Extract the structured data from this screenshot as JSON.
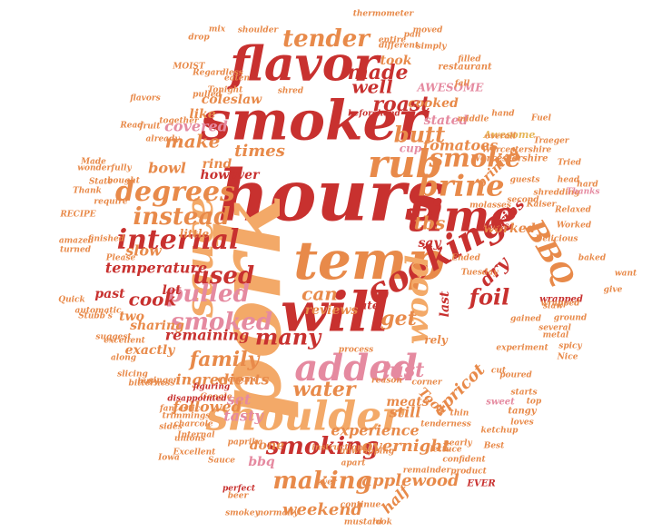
{
  "palette": {
    "red": "#c8312f",
    "darkred": "#b22a2a",
    "orange": "#e88a4a",
    "peach": "#f3a968",
    "pink": "#e58aa0",
    "gold": "#e6b656",
    "rose": "#d9606d"
  },
  "words": [
    {
      "text": "hours",
      "color": "red"
    },
    {
      "text": "smoker",
      "color": "red"
    },
    {
      "text": "pork",
      "color": "peach"
    },
    {
      "text": "flavor",
      "color": "red"
    },
    {
      "text": "temp",
      "color": "orange"
    },
    {
      "text": "will",
      "color": "red"
    },
    {
      "text": "time",
      "color": "red"
    },
    {
      "text": "shoulder",
      "color": "peach"
    },
    {
      "text": "sauce",
      "color": "peach"
    },
    {
      "text": "added",
      "color": "pink"
    },
    {
      "text": "cooking",
      "color": "red"
    },
    {
      "text": "rub",
      "color": "orange"
    },
    {
      "text": "degrees",
      "color": "orange"
    },
    {
      "text": "internal",
      "color": "red"
    },
    {
      "text": "wood",
      "color": "peach"
    },
    {
      "text": "brine",
      "color": "orange"
    },
    {
      "text": "smoked",
      "color": "pink"
    },
    {
      "text": "tender",
      "color": "orange"
    },
    {
      "text": "pulled",
      "color": "pink"
    },
    {
      "text": "smoke",
      "color": "orange"
    },
    {
      "text": "BBQ",
      "color": "orange"
    },
    {
      "text": "smoking",
      "color": "red"
    },
    {
      "text": "used",
      "color": "red"
    },
    {
      "text": "instead",
      "color": "orange"
    },
    {
      "text": "made",
      "color": "red"
    },
    {
      "text": "roast",
      "color": "red"
    },
    {
      "text": "butt",
      "color": "orange"
    },
    {
      "text": "making",
      "color": "orange"
    },
    {
      "text": "many",
      "color": "red"
    },
    {
      "text": "foil",
      "color": "red"
    },
    {
      "text": "water",
      "color": "orange"
    },
    {
      "text": "get",
      "color": "orange"
    },
    {
      "text": "just",
      "color": "pink"
    },
    {
      "text": "can",
      "color": "orange"
    },
    {
      "text": "cook",
      "color": "red"
    },
    {
      "text": "family",
      "color": "orange"
    },
    {
      "text": "well",
      "color": "red"
    },
    {
      "text": "make",
      "color": "orange"
    },
    {
      "text": "covered",
      "color": "pink"
    },
    {
      "text": "times",
      "color": "orange"
    },
    {
      "text": "ingredients",
      "color": "orange"
    },
    {
      "text": "overnight",
      "color": "orange"
    },
    {
      "text": "weekend",
      "color": "orange"
    },
    {
      "text": "applewood",
      "color": "orange"
    },
    {
      "text": "tbs",
      "color": "orange"
    },
    {
      "text": "dry",
      "color": "red"
    },
    {
      "text": "apricot",
      "color": "orange"
    },
    {
      "text": "still",
      "color": "orange"
    },
    {
      "text": "tasty",
      "color": "pink"
    },
    {
      "text": "meats",
      "color": "orange"
    },
    {
      "text": "experience",
      "color": "orange"
    },
    {
      "text": "temperature",
      "color": "red"
    },
    {
      "text": "bowl",
      "color": "orange"
    },
    {
      "text": "coleslaw",
      "color": "orange"
    },
    {
      "text": "tomatoes",
      "color": "orange"
    },
    {
      "text": "cooked",
      "color": "orange"
    },
    {
      "text": "ribs",
      "color": "red"
    },
    {
      "text": "brining",
      "color": "orange"
    },
    {
      "text": "stated",
      "color": "pink"
    },
    {
      "text": "set",
      "color": "pink"
    },
    {
      "text": "followed",
      "color": "orange"
    },
    {
      "text": "exactly",
      "color": "orange"
    },
    {
      "text": "remaining",
      "color": "red"
    },
    {
      "text": "sharing",
      "color": "orange"
    },
    {
      "text": "slow",
      "color": "orange"
    },
    {
      "text": "past",
      "color": "red"
    },
    {
      "text": "two",
      "color": "orange"
    },
    {
      "text": "lot",
      "color": "red"
    },
    {
      "text": "little",
      "color": "orange"
    },
    {
      "text": "however",
      "color": "red"
    },
    {
      "text": "like",
      "color": "orange"
    },
    {
      "text": "rind",
      "color": "orange"
    },
    {
      "text": "AWESOME",
      "color": "pink"
    },
    {
      "text": "worked",
      "color": "orange"
    },
    {
      "text": "reviews",
      "color": "orange"
    },
    {
      "text": "ate",
      "color": "red"
    },
    {
      "text": "say",
      "color": "red"
    },
    {
      "text": "Took",
      "color": "orange"
    },
    {
      "text": "half",
      "color": "orange"
    },
    {
      "text": "last",
      "color": "red"
    },
    {
      "text": "rely",
      "color": "orange"
    },
    {
      "text": "done",
      "color": "orange"
    },
    {
      "text": "bbq",
      "color": "pink"
    },
    {
      "text": "took",
      "color": "orange"
    },
    {
      "text": "cup",
      "color": "pink"
    },
    {
      "text": "Worcestershire",
      "color": "orange"
    },
    {
      "text": "MOIST",
      "color": "orange"
    },
    {
      "text": "Regardless",
      "color": "orange"
    },
    {
      "text": "restaurant",
      "color": "orange"
    },
    {
      "text": "Tonight",
      "color": "orange"
    },
    {
      "text": "Awesome",
      "color": "gold"
    },
    {
      "text": "shredding",
      "color": "orange"
    },
    {
      "text": "Thanks",
      "color": "pink"
    },
    {
      "text": "guests",
      "color": "orange"
    },
    {
      "text": "Kaiser",
      "color": "orange"
    },
    {
      "text": "head",
      "color": "orange"
    },
    {
      "text": "cloves",
      "color": "red"
    },
    {
      "text": "second",
      "color": "orange"
    },
    {
      "text": "molasses",
      "color": "orange"
    },
    {
      "text": "Delicious",
      "color": "orange"
    },
    {
      "text": "baked",
      "color": "orange"
    },
    {
      "text": "wrapped",
      "color": "red"
    },
    {
      "text": "slaw",
      "color": "orange"
    },
    {
      "text": "several",
      "color": "orange"
    },
    {
      "text": "metal",
      "color": "orange"
    },
    {
      "text": "spicy",
      "color": "orange"
    },
    {
      "text": "Nice",
      "color": "orange"
    },
    {
      "text": "starts",
      "color": "orange"
    },
    {
      "text": "top",
      "color": "orange"
    },
    {
      "text": "sweet",
      "color": "pink"
    },
    {
      "text": "tangy",
      "color": "orange"
    },
    {
      "text": "Best",
      "color": "orange"
    },
    {
      "text": "EVER",
      "color": "red"
    },
    {
      "text": "product",
      "color": "orange"
    },
    {
      "text": "confident",
      "color": "orange"
    },
    {
      "text": "tenderness",
      "color": "orange"
    },
    {
      "text": "lettuce",
      "color": "orange"
    },
    {
      "text": "instructions",
      "color": "orange"
    },
    {
      "text": "Google",
      "color": "orange"
    },
    {
      "text": "figuring",
      "color": "red"
    },
    {
      "text": "fantastic",
      "color": "orange"
    },
    {
      "text": "trimmings",
      "color": "orange"
    },
    {
      "text": "disappointed",
      "color": "red"
    },
    {
      "text": "everyone",
      "color": "orange"
    },
    {
      "text": "bitterness",
      "color": "orange"
    },
    {
      "text": "slicing",
      "color": "orange"
    },
    {
      "text": "excellent",
      "color": "orange"
    },
    {
      "text": "automatic",
      "color": "orange"
    },
    {
      "text": "Quick",
      "color": "orange"
    },
    {
      "text": "Please",
      "color": "orange"
    },
    {
      "text": "turned",
      "color": "orange"
    },
    {
      "text": "amazed",
      "color": "orange"
    },
    {
      "text": "finished",
      "color": "orange"
    },
    {
      "text": "RECIPE",
      "color": "orange"
    },
    {
      "text": "State",
      "color": "orange"
    },
    {
      "text": "bought",
      "color": "orange"
    },
    {
      "text": "Made",
      "color": "orange"
    },
    {
      "text": "Read",
      "color": "orange"
    },
    {
      "text": "fruit",
      "color": "orange"
    },
    {
      "text": "already",
      "color": "orange"
    },
    {
      "text": "together",
      "color": "orange"
    },
    {
      "text": "eaten",
      "color": "orange"
    },
    {
      "text": "beforehand",
      "color": "red"
    },
    {
      "text": "thermometer",
      "color": "orange"
    },
    {
      "text": "different",
      "color": "orange"
    },
    {
      "text": "entire",
      "color": "orange"
    },
    {
      "text": "simply",
      "color": "orange"
    },
    {
      "text": "middle",
      "color": "orange"
    },
    {
      "text": "hand",
      "color": "orange"
    },
    {
      "text": "overall",
      "color": "orange"
    },
    {
      "text": "ketchup",
      "color": "orange"
    },
    {
      "text": "loves",
      "color": "orange"
    },
    {
      "text": "Iowa",
      "color": "orange"
    },
    {
      "text": "unions",
      "color": "orange"
    },
    {
      "text": "Excellent",
      "color": "orange"
    },
    {
      "text": "smokey",
      "color": "orange"
    },
    {
      "text": "normally",
      "color": "orange"
    },
    {
      "text": "beer",
      "color": "orange"
    },
    {
      "text": "perfect",
      "color": "red"
    },
    {
      "text": "mustard",
      "color": "orange"
    },
    {
      "text": "look",
      "color": "orange"
    },
    {
      "text": "charcole",
      "color": "orange"
    },
    {
      "text": "paprika",
      "color": "orange"
    },
    {
      "text": "Sauce",
      "color": "orange"
    },
    {
      "text": "Internal",
      "color": "orange"
    },
    {
      "text": "ginger",
      "color": "orange"
    },
    {
      "text": "busy",
      "color": "orange"
    },
    {
      "text": "along",
      "color": "orange"
    },
    {
      "text": "corner",
      "color": "orange"
    },
    {
      "text": "reason",
      "color": "orange"
    },
    {
      "text": "process",
      "color": "orange"
    },
    {
      "text": "Ended",
      "color": "orange"
    },
    {
      "text": "shred",
      "color": "orange"
    },
    {
      "text": "thin",
      "color": "orange"
    },
    {
      "text": "Worked",
      "color": "orange"
    },
    {
      "text": "ground",
      "color": "orange"
    },
    {
      "text": "experiment",
      "color": "orange"
    },
    {
      "text": "poured",
      "color": "orange"
    },
    {
      "text": "cut",
      "color": "orange"
    },
    {
      "text": "want",
      "color": "orange"
    },
    {
      "text": "give",
      "color": "orange"
    },
    {
      "text": "Relaxed",
      "color": "orange"
    },
    {
      "text": "require",
      "color": "orange"
    },
    {
      "text": "wonderfully",
      "color": "orange"
    },
    {
      "text": "Thank",
      "color": "orange"
    },
    {
      "text": "suggest",
      "color": "orange"
    },
    {
      "text": "fall",
      "color": "orange"
    },
    {
      "text": "Fuel",
      "color": "orange"
    },
    {
      "text": "moved",
      "color": "orange"
    },
    {
      "text": "filled",
      "color": "orange"
    },
    {
      "text": "Tried",
      "color": "orange"
    },
    {
      "text": "Traeger",
      "color": "orange"
    },
    {
      "text": "drop",
      "color": "orange"
    },
    {
      "text": "mix",
      "color": "orange"
    },
    {
      "text": "shoulder",
      "color": "orange"
    },
    {
      "text": "hard",
      "color": "orange"
    },
    {
      "text": "Stubb's",
      "color": "orange"
    },
    {
      "text": "flavors",
      "color": "orange"
    },
    {
      "text": "pulled",
      "color": "orange"
    },
    {
      "text": "Worcestershire",
      "color": "orange"
    },
    {
      "text": "pan",
      "color": "orange"
    },
    {
      "text": "Tuesday",
      "color": "orange"
    },
    {
      "text": "remainder",
      "color": "orange"
    },
    {
      "text": "continue",
      "color": "orange"
    },
    {
      "text": "nearly",
      "color": "orange"
    },
    {
      "text": "unwrapping",
      "color": "orange"
    },
    {
      "text": "ever",
      "color": "orange"
    },
    {
      "text": "apart",
      "color": "orange"
    },
    {
      "text": "gained",
      "color": "orange"
    },
    {
      "text": "wrapped",
      "color": "orange"
    },
    {
      "text": "sides",
      "color": "orange"
    }
  ]
}
